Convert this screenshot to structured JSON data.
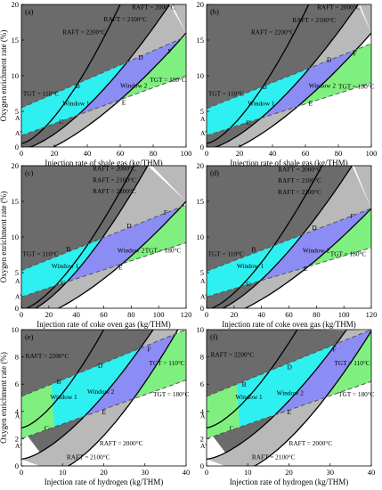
{
  "colors": {
    "raft2000_band": "#6b6b6b",
    "raft2100_band": "#b9b9b9",
    "window1": "#7ff07f",
    "window2": "#8c8cf5",
    "cyan_region": "#2ef0f0",
    "tgt_line": "#555555",
    "curve": "#000000"
  },
  "chart_data": [
    {
      "panel": "(a)",
      "type": "area",
      "xlabel": "Injection rate of shale gas (kg/THM)",
      "ylabel": "Oxygen enrichment rate (%)",
      "xlim": [
        0,
        100
      ],
      "ylim": [
        0,
        20
      ],
      "xticks": [
        0,
        20,
        40,
        60,
        80,
        100
      ],
      "yticks": [
        0,
        5,
        10,
        15,
        20
      ],
      "tick_labels_x": [
        "0",
        "20",
        "40",
        "60",
        "80",
        "100"
      ],
      "tick_labels_y": [
        "0",
        "5",
        "10",
        "15",
        "20"
      ],
      "curves": {
        "raft_2000": {
          "x": [
            0,
            60
          ],
          "y": [
            0.5,
            20
          ]
        },
        "raft_2100": {
          "x": [
            0,
            90
          ],
          "y": [
            -0.3,
            20
          ]
        },
        "raft_2200": {
          "x": [
            0,
            100
          ],
          "y": [
            -1.5,
            16
          ]
        },
        "tgt_110": {
          "x": [
            0,
            100
          ],
          "y": [
            5.5,
            15.5
          ]
        },
        "tgt_180": {
          "x": [
            0,
            100
          ],
          "y": [
            1.6,
            10
          ]
        }
      },
      "annotations": [
        {
          "text": "RAFT = 2000°C",
          "x": 67,
          "y": 19.3
        },
        {
          "text": "RAFT = 2100°C",
          "x": 50,
          "y": 17.6
        },
        {
          "text": "RAFT = 2200°C",
          "x": 25,
          "y": 15.8
        },
        {
          "text": "TGT = 110°C",
          "x": 1,
          "y": 7.2
        },
        {
          "text": "TGT = 180°C",
          "x": 78,
          "y": 9.1
        },
        {
          "text": "Window 1",
          "x": 25,
          "y": 5.8
        },
        {
          "text": "Window 2",
          "x": 60,
          "y": 8.3
        }
      ],
      "points": [
        {
          "label": "A",
          "x": 0,
          "y": 4.1
        },
        {
          "label": "A'",
          "x": 0,
          "y": 2.0
        },
        {
          "label": "B",
          "x": 34,
          "y": 8.6
        },
        {
          "label": "C",
          "x": 24,
          "y": 3.6
        },
        {
          "label": "D",
          "x": 72,
          "y": 12.6
        },
        {
          "label": "E",
          "x": 62,
          "y": 6.3
        },
        {
          "label": "F",
          "x": 90,
          "y": 13.5
        }
      ]
    },
    {
      "panel": "(b)",
      "type": "area",
      "xlabel": "Injection rate of shale gas (kg/THM)",
      "ylabel": "",
      "xlim": [
        0,
        100
      ],
      "ylim": [
        0,
        20
      ],
      "xticks": [
        0,
        20,
        40,
        60,
        80,
        100
      ],
      "yticks": [
        0,
        5,
        10,
        15,
        20
      ],
      "tick_labels_x": [
        "0",
        "20",
        "40",
        "60",
        "80",
        "100"
      ],
      "tick_labels_y": [
        "0",
        "5",
        "10",
        "15",
        "20"
      ],
      "curves": {
        "raft_2000": {
          "x": [
            0,
            62
          ],
          "y": [
            0.5,
            20
          ]
        },
        "raft_2100": {
          "x": [
            0,
            92
          ],
          "y": [
            -0.3,
            20
          ]
        },
        "raft_2200": {
          "x": [
            0,
            100
          ],
          "y": [
            -1.5,
            16
          ]
        },
        "tgt_110": {
          "x": [
            0,
            100
          ],
          "y": [
            5.4,
            14.5
          ]
        },
        "tgt_180": {
          "x": [
            0,
            100
          ],
          "y": [
            1.6,
            9.0
          ]
        }
      },
      "annotations": [
        {
          "text": "RAFT = 2000°C",
          "x": 67,
          "y": 19.3
        },
        {
          "text": "RAFT = 2100°C",
          "x": 52,
          "y": 17.5
        },
        {
          "text": "RAFT = 2200°C",
          "x": 27,
          "y": 15.8
        },
        {
          "text": "TGT = 110°C",
          "x": 1,
          "y": 7.2
        },
        {
          "text": "TGT = 180°C",
          "x": 80,
          "y": 8.2
        },
        {
          "text": "Window 1",
          "x": 25,
          "y": 5.8
        },
        {
          "text": "Window 2",
          "x": 62,
          "y": 8.3
        }
      ],
      "points": [
        {
          "label": "A",
          "x": 0,
          "y": 4.0
        },
        {
          "label": "A'",
          "x": 0,
          "y": 2.0
        },
        {
          "label": "B",
          "x": 35,
          "y": 8.5
        },
        {
          "label": "C",
          "x": 25,
          "y": 3.5
        },
        {
          "label": "D",
          "x": 74,
          "y": 12.3
        },
        {
          "label": "E",
          "x": 63,
          "y": 6.2
        },
        {
          "label": "F",
          "x": 90,
          "y": 13.2
        }
      ]
    },
    {
      "panel": "(c)",
      "type": "area",
      "xlabel": "Injection rate of coke oven gas (kg/THM)",
      "ylabel": "Oxygen enrichment rate (%)",
      "xlim": [
        0,
        120
      ],
      "ylim": [
        0,
        20
      ],
      "xticks": [
        0,
        20,
        40,
        60,
        80,
        100,
        120
      ],
      "yticks": [
        0,
        5,
        10,
        15,
        20
      ],
      "tick_labels_x": [
        "0",
        "20",
        "40",
        "60",
        "80",
        "100",
        "120"
      ],
      "tick_labels_y": [
        "0",
        "5",
        "10",
        "15",
        "20"
      ],
      "curves": {
        "raft_2000": {
          "x": [
            0,
            82
          ],
          "y": [
            -0.2,
            20
          ]
        },
        "raft_2100": {
          "x": [
            0,
            92
          ],
          "y": [
            -0.8,
            20
          ]
        },
        "raft_2200": {
          "x": [
            0,
            120
          ],
          "y": [
            -1.8,
            15
          ]
        },
        "tgt_110": {
          "x": [
            0,
            120
          ],
          "y": [
            5.3,
            14.5
          ]
        },
        "tgt_180": {
          "x": [
            0,
            120
          ],
          "y": [
            1.6,
            9.2
          ]
        }
      },
      "annotations": [
        {
          "text": "RAFT = 2000°C",
          "x": 52,
          "y": 19.3
        },
        {
          "text": "RAFT = 2100°C",
          "x": 52,
          "y": 17.7
        },
        {
          "text": "RAFT = 2200°C",
          "x": 52,
          "y": 16.1
        },
        {
          "text": "TGT = 110°C",
          "x": 1,
          "y": 7.3
        },
        {
          "text": "TGT = 180°C",
          "x": 90,
          "y": 7.8
        },
        {
          "text": "Window 1",
          "x": 22,
          "y": 5.6
        },
        {
          "text": "Window 2",
          "x": 70,
          "y": 7.8
        }
      ],
      "points": [
        {
          "label": "A",
          "x": 0,
          "y": 3.9
        },
        {
          "label": "A'",
          "x": 0,
          "y": 1.7
        },
        {
          "label": "B",
          "x": 34,
          "y": 8.4
        },
        {
          "label": "C",
          "x": 30,
          "y": 3.6
        },
        {
          "label": "D",
          "x": 78,
          "y": 11.6
        },
        {
          "label": "E",
          "x": 72,
          "y": 5.8
        },
        {
          "label": "F",
          "x": 105,
          "y": 13.5
        }
      ]
    },
    {
      "panel": "(d)",
      "type": "area",
      "xlabel": "Injection rate of coke oven gas (kg/THM)",
      "ylabel": "",
      "xlim": [
        0,
        120
      ],
      "ylim": [
        0,
        20
      ],
      "xticks": [
        0,
        20,
        40,
        60,
        80,
        100,
        120
      ],
      "yticks": [
        0,
        5,
        10,
        15,
        20
      ],
      "tick_labels_x": [
        "0",
        "20",
        "40",
        "60",
        "80",
        "100",
        "120"
      ],
      "tick_labels_y": [
        "0",
        "5",
        "10",
        "15",
        "20"
      ],
      "curves": {
        "raft_2000": {
          "x": [
            0,
            84
          ],
          "y": [
            -0.2,
            20
          ]
        },
        "raft_2100": {
          "x": [
            0,
            106
          ],
          "y": [
            -0.8,
            20
          ]
        },
        "raft_2200": {
          "x": [
            0,
            120
          ],
          "y": [
            -1.8,
            14
          ]
        },
        "tgt_110": {
          "x": [
            0,
            120
          ],
          "y": [
            5.2,
            14.0
          ]
        },
        "tgt_180": {
          "x": [
            0,
            120
          ],
          "y": [
            1.6,
            8.5
          ]
        }
      },
      "annotations": [
        {
          "text": "RAFT = 2000°C",
          "x": 52,
          "y": 19.2
        },
        {
          "text": "RAFT = 2100°C",
          "x": 52,
          "y": 17.6
        },
        {
          "text": "RAFT = 2200°C",
          "x": 52,
          "y": 16.0
        },
        {
          "text": "TGT = 110°C",
          "x": 1,
          "y": 7.3
        },
        {
          "text": "TGT = 180°C",
          "x": 90,
          "y": 7.3
        },
        {
          "text": "Window 1",
          "x": 22,
          "y": 5.6
        },
        {
          "text": "Window 2",
          "x": 70,
          "y": 7.8
        }
      ],
      "points": [
        {
          "label": "A",
          "x": 0,
          "y": 3.9
        },
        {
          "label": "A'",
          "x": 0,
          "y": 1.7
        },
        {
          "label": "B",
          "x": 34,
          "y": 8.3
        },
        {
          "label": "C",
          "x": 30,
          "y": 3.5
        },
        {
          "label": "D",
          "x": 78,
          "y": 11.4
        },
        {
          "label": "E",
          "x": 72,
          "y": 5.6
        },
        {
          "label": "F",
          "x": 106,
          "y": 13.0
        }
      ]
    },
    {
      "panel": "(e)",
      "type": "area",
      "xlabel": "Injection rate of hydrogen  (kg/THM)",
      "ylabel": "Oxygen enrichment rate (%)",
      "xlim": [
        0,
        40
      ],
      "ylim": [
        0,
        10
      ],
      "xticks": [
        0,
        10,
        20,
        30,
        40
      ],
      "yticks": [
        0,
        2,
        4,
        6,
        8,
        10
      ],
      "tick_labels_x": [
        "0",
        "10",
        "20",
        "30",
        "40"
      ],
      "tick_labels_y": [
        "0",
        "2",
        "4",
        "6",
        "8",
        "10"
      ],
      "curves": {
        "raft_2200": {
          "x": [
            0,
            20
          ],
          "y": [
            2.8,
            10
          ]
        },
        "raft_2100": {
          "x": [
            0,
            32
          ],
          "y": [
            0.5,
            10
          ]
        },
        "raft_2000": {
          "x": [
            8,
            38
          ],
          "y": [
            -0.4,
            10
          ]
        },
        "tgt_110": {
          "x": [
            0,
            40
          ],
          "y": [
            5.1,
            10
          ]
        },
        "tgt_180": {
          "x": [
            0,
            40
          ],
          "y": [
            2.0,
            6.3
          ]
        }
      },
      "annotations": [
        {
          "text": "RAFT = 2200°C",
          "x": 1,
          "y": 7.9
        },
        {
          "text": "TGT = 110°C",
          "x": 31,
          "y": 7.4
        },
        {
          "text": "TGT = 180°C",
          "x": 32,
          "y": 5.1
        },
        {
          "text": "Window 1",
          "x": 7,
          "y": 4.9
        },
        {
          "text": "Window 2",
          "x": 16,
          "y": 5.3
        },
        {
          "text": "RAFT = 2000°C",
          "x": 19,
          "y": 1.5
        },
        {
          "text": "RAFT = 2100°C",
          "x": 11,
          "y": 0.5
        }
      ],
      "points": [
        {
          "label": "A",
          "x": 0,
          "y": 3.7
        },
        {
          "label": "A'",
          "x": 0,
          "y": 1.5
        },
        {
          "label": "B",
          "x": 9,
          "y": 6.2
        },
        {
          "label": "C",
          "x": 6,
          "y": 2.8
        },
        {
          "label": "D",
          "x": 19,
          "y": 7.4
        },
        {
          "label": "E",
          "x": 20,
          "y": 4.0
        },
        {
          "label": "F",
          "x": 31,
          "y": 8.6
        }
      ]
    },
    {
      "panel": "(f)",
      "type": "area",
      "xlabel": "Injection rate of hydrogen  (kg/THM)",
      "ylabel": "",
      "xlim": [
        0,
        40
      ],
      "ylim": [
        0,
        10
      ],
      "xticks": [
        0,
        10,
        20,
        30,
        40
      ],
      "yticks": [
        0,
        2,
        4,
        6,
        8,
        10
      ],
      "tick_labels_x": [
        "0",
        "10",
        "20",
        "30",
        "40"
      ],
      "tick_labels_y": [
        "0",
        "2",
        "4",
        "6",
        "8",
        "10"
      ],
      "curves": {
        "raft_2200": {
          "x": [
            0,
            22
          ],
          "y": [
            2.8,
            10
          ]
        },
        "raft_2100": {
          "x": [
            0,
            34
          ],
          "y": [
            0.5,
            10
          ]
        },
        "raft_2000": {
          "x": [
            8,
            40
          ],
          "y": [
            -0.4,
            9.9
          ]
        },
        "tgt_110": {
          "x": [
            0,
            40
          ],
          "y": [
            5.1,
            10
          ]
        },
        "tgt_180": {
          "x": [
            0,
            40
          ],
          "y": [
            2.0,
            6.2
          ]
        }
      },
      "annotations": [
        {
          "text": "RAFT = 2200°C",
          "x": 1,
          "y": 8.0
        },
        {
          "text": "TGT = 110°C",
          "x": 31,
          "y": 7.4
        },
        {
          "text": "TGT = 180°C",
          "x": 32,
          "y": 5.1
        },
        {
          "text": "Window 1",
          "x": 7,
          "y": 4.9
        },
        {
          "text": "Window 2",
          "x": 17,
          "y": 5.2
        },
        {
          "text": "RAFT = 2000°C",
          "x": 20,
          "y": 1.5
        },
        {
          "text": "RAFT = 2100°C",
          "x": 11,
          "y": 0.5
        }
      ],
      "points": [
        {
          "label": "A",
          "x": 0,
          "y": 3.7
        },
        {
          "label": "A'",
          "x": 0,
          "y": 1.5
        },
        {
          "label": "B",
          "x": 9,
          "y": 6.0
        },
        {
          "label": "C",
          "x": 6,
          "y": 2.8
        },
        {
          "label": "D",
          "x": 20,
          "y": 7.3
        },
        {
          "label": "E",
          "x": 20,
          "y": 4.0
        },
        {
          "label": "F",
          "x": 31,
          "y": 8.6
        }
      ]
    }
  ]
}
